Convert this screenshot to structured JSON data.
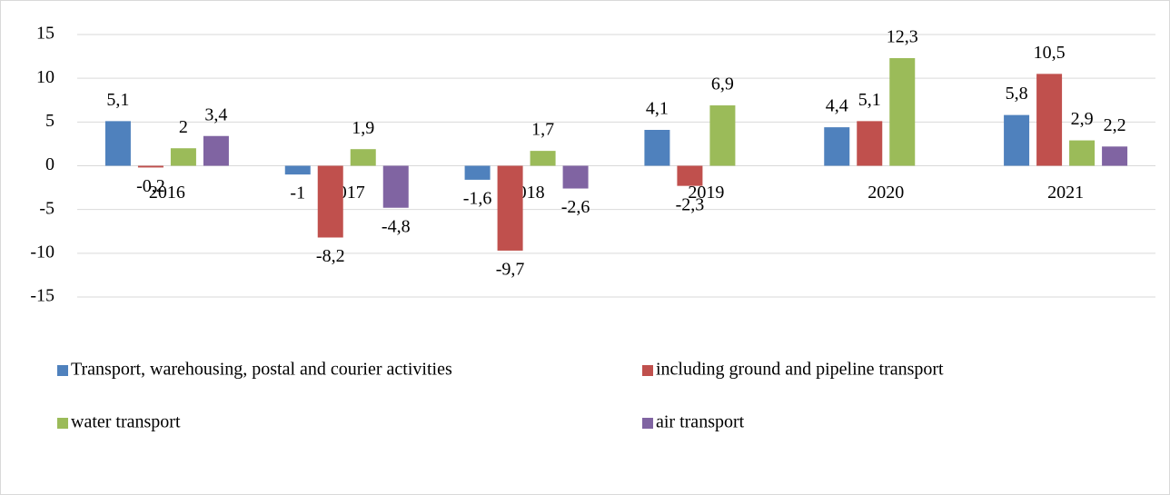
{
  "chart_data": {
    "type": "bar",
    "categories": [
      "2016",
      "2017",
      "2018",
      "2019",
      "2020",
      "2021"
    ],
    "series": [
      {
        "name": "Transport, warehousing, postal and courier activities",
        "color": "#4f81bd",
        "values": [
          5.1,
          -1,
          -1.6,
          4.1,
          4.4,
          5.8
        ],
        "value_labels": [
          "5,1",
          "-1",
          "-1,6",
          "4,1",
          "4,4",
          "5,8"
        ]
      },
      {
        "name": "including ground and pipeline transport",
        "color": "#c0504d",
        "values": [
          -0.2,
          -8.2,
          -9.7,
          -2.3,
          5.1,
          10.5
        ],
        "value_labels": [
          "-0,2",
          "-8,2",
          "-9,7",
          "-2,3",
          "5,1",
          "10,5"
        ]
      },
      {
        "name": "water transport",
        "color": "#9bbb59",
        "values": [
          2,
          1.9,
          1.7,
          6.9,
          12.3,
          2.9
        ],
        "value_labels": [
          "2",
          "1,9",
          "1,7",
          "6,9",
          "12,3",
          "2,9"
        ]
      },
      {
        "name": "air transport",
        "color": "#8064a2",
        "values": [
          3.4,
          -4.8,
          -2.6,
          null,
          null,
          2.2
        ],
        "value_labels": [
          "3,4",
          "-4,8",
          "-2,6",
          null,
          null,
          "2,2"
        ]
      }
    ],
    "ylim": [
      -15,
      15
    ],
    "yticks": [
      15,
      10,
      5,
      0,
      -5,
      -10,
      -15
    ],
    "grid": true,
    "legend": "bottom"
  }
}
